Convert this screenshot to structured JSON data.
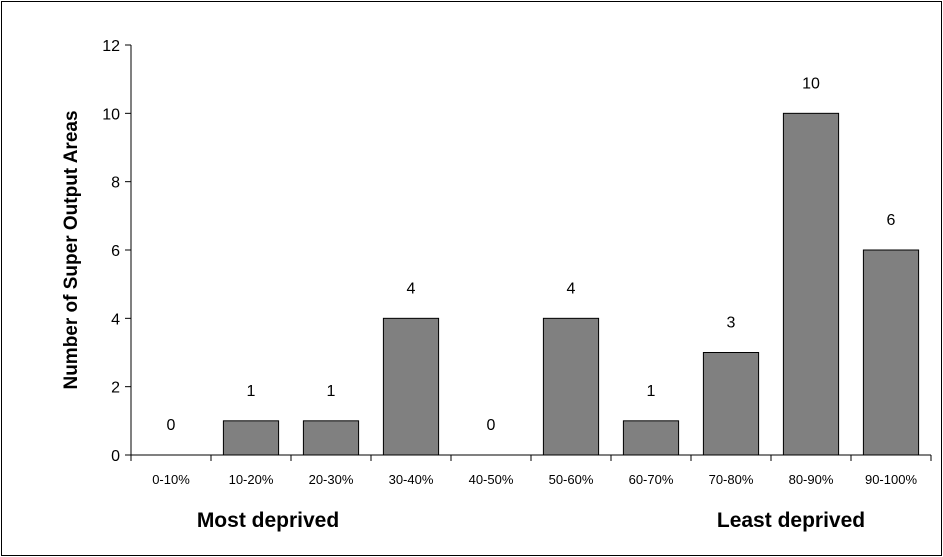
{
  "chart_data": {
    "type": "bar",
    "categories": [
      "0-10%",
      "10-20%",
      "20-30%",
      "30-40%",
      "40-50%",
      "50-60%",
      "60-70%",
      "70-80%",
      "80-90%",
      "90-100%"
    ],
    "values": [
      0,
      1,
      1,
      4,
      0,
      4,
      1,
      3,
      10,
      6
    ],
    "ylabel": "Number of Super Output Areas",
    "xlabel": "",
    "ylim": [
      0,
      12
    ],
    "yticks": [
      0,
      2,
      4,
      6,
      8,
      10,
      12
    ],
    "grid": false,
    "legend": "none",
    "bar_color": "#808080",
    "bottom_labels": {
      "left": "Most deprived",
      "right": "Least deprived"
    }
  }
}
